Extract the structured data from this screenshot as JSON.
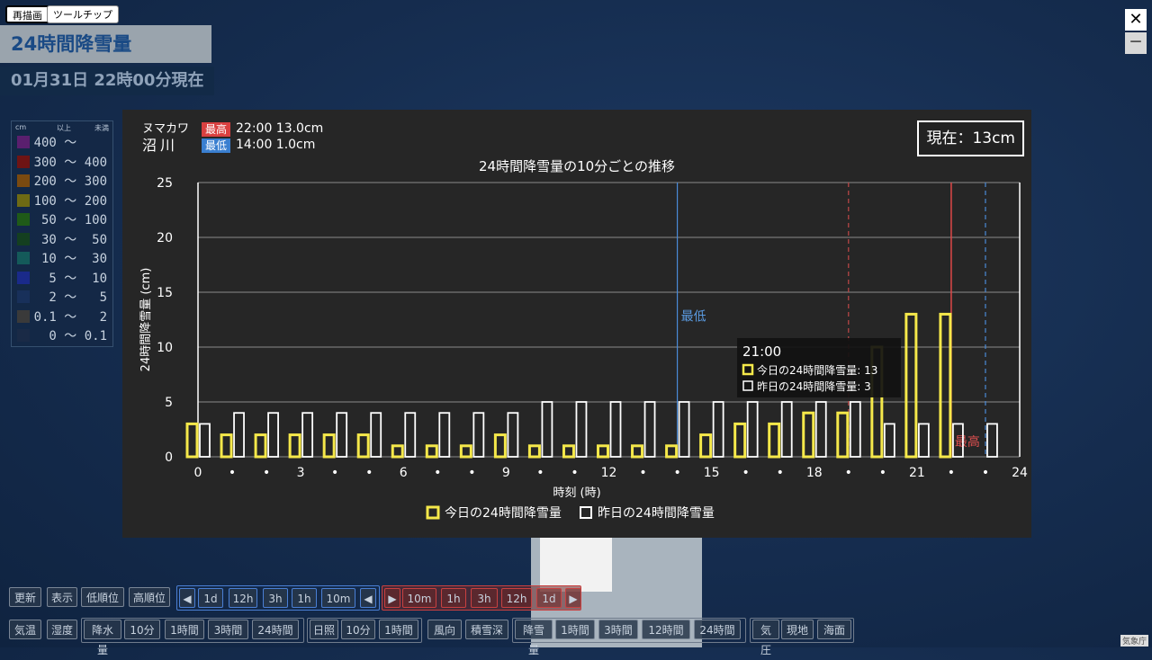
{
  "top_buttons": {
    "redraw": "再描画",
    "tooltip": "ツールチップ"
  },
  "title": "24時間降雪量",
  "datetime": "01月31日 22時00分現在",
  "legend": {
    "unit": "cm",
    "col_min": "以上",
    "col_max": "未満",
    "rows": [
      {
        "label": "400 ～    ",
        "color": "#5a1f6e"
      },
      {
        "label": "300 ～ 400",
        "color": "#6e1414"
      },
      {
        "label": "200 ～ 300",
        "color": "#7a4a10"
      },
      {
        "label": "100 ～ 200",
        "color": "#6e6a14"
      },
      {
        "label": " 50 ～ 100",
        "color": "#1f5a18"
      },
      {
        "label": " 30 ～  50",
        "color": "#143f20"
      },
      {
        "label": " 10 ～  30",
        "color": "#145a5a"
      },
      {
        "label": "  5 ～  10",
        "color": "#1a2a8a"
      },
      {
        "label": "  2 ～   5",
        "color": "#18305a"
      },
      {
        "label": "0.1 ～   2",
        "color": "#3a3a3a"
      },
      {
        "label": "  0 ～ 0.1",
        "color": "#1a2a46"
      }
    ]
  },
  "window_controls": {
    "close": "✕",
    "minimize": "－"
  },
  "panel": {
    "station_kana": "ヌマカワ",
    "station_name": "沼川",
    "max_tag": "最高",
    "max_value": "22:00  13.0cm",
    "min_tag": "最低",
    "min_value": "14:00  1.0cm",
    "current": "現在：13cm",
    "chart_title": "24時間降雪量の10分ごとの推移"
  },
  "chart_data": {
    "type": "bar",
    "title": "24時間降雪量の10分ごとの推移",
    "xlabel": "時刻 (時)",
    "ylabel": "24時間降雪量 (cm)",
    "ylim": [
      0,
      25
    ],
    "yticks": [
      0,
      5,
      10,
      15,
      20,
      25
    ],
    "xlim": [
      0,
      24
    ],
    "xtick_labels": [
      "0",
      "•",
      "•",
      "3",
      "•",
      "•",
      "6",
      "•",
      "•",
      "9",
      "•",
      "•",
      "12",
      "•",
      "•",
      "15",
      "•",
      "•",
      "18",
      "•",
      "•",
      "21",
      "•",
      "•",
      "24"
    ],
    "hours": [
      0,
      1,
      2,
      3,
      4,
      5,
      6,
      7,
      8,
      9,
      10,
      11,
      12,
      13,
      14,
      15,
      16,
      17,
      18,
      19,
      20,
      21,
      22,
      23
    ],
    "series": [
      {
        "name": "今日の24時間降雪量",
        "color": "#f5e84a",
        "values": [
          3,
          2,
          2,
          2,
          2,
          2,
          1,
          1,
          1,
          2,
          1,
          1,
          1,
          1,
          1,
          2,
          3,
          3,
          4,
          4,
          10,
          13,
          13,
          null
        ]
      },
      {
        "name": "昨日の24時間降雪量",
        "color": "#ffffff",
        "values": [
          3,
          4,
          4,
          4,
          4,
          4,
          4,
          4,
          4,
          4,
          5,
          5,
          5,
          5,
          5,
          5,
          5,
          5,
          5,
          5,
          3,
          3,
          3,
          3
        ]
      }
    ],
    "legend": "bottom",
    "grid": true,
    "annotations": [
      {
        "text": "最低",
        "x": 14,
        "color": "#5a9ae0"
      },
      {
        "text": "最高",
        "x": 22,
        "color": "#e05050"
      }
    ],
    "tooltip": {
      "time": "21:00",
      "today": "今日の24時間降雪量: 13",
      "yesterday": "昨日の24時間降雪量: 3"
    }
  },
  "bottom_bar": {
    "row1": [
      "更新",
      "表示",
      "低順位",
      "高順位"
    ],
    "blue_group": [
      "◀",
      "1d",
      "12h",
      "3h",
      "1h",
      "10m",
      "◀"
    ],
    "red_group": [
      "▶",
      "10m",
      "1h",
      "3h",
      "12h",
      "1d",
      "▶"
    ],
    "row2a": [
      "気温",
      "湿度"
    ],
    "row2_precip": [
      "降水量",
      "10分",
      "1時間",
      "3時間",
      "24時間"
    ],
    "row2_sun": [
      "日照",
      "10分",
      "1時間"
    ],
    "row2_wind": [
      "風向",
      "積雪深"
    ],
    "row2_snow": [
      "降雪量",
      "1時間",
      "3時間",
      "12時間",
      "24時間"
    ],
    "row2_press": [
      "気圧",
      "現地",
      "海面"
    ]
  },
  "credit": "気象庁"
}
